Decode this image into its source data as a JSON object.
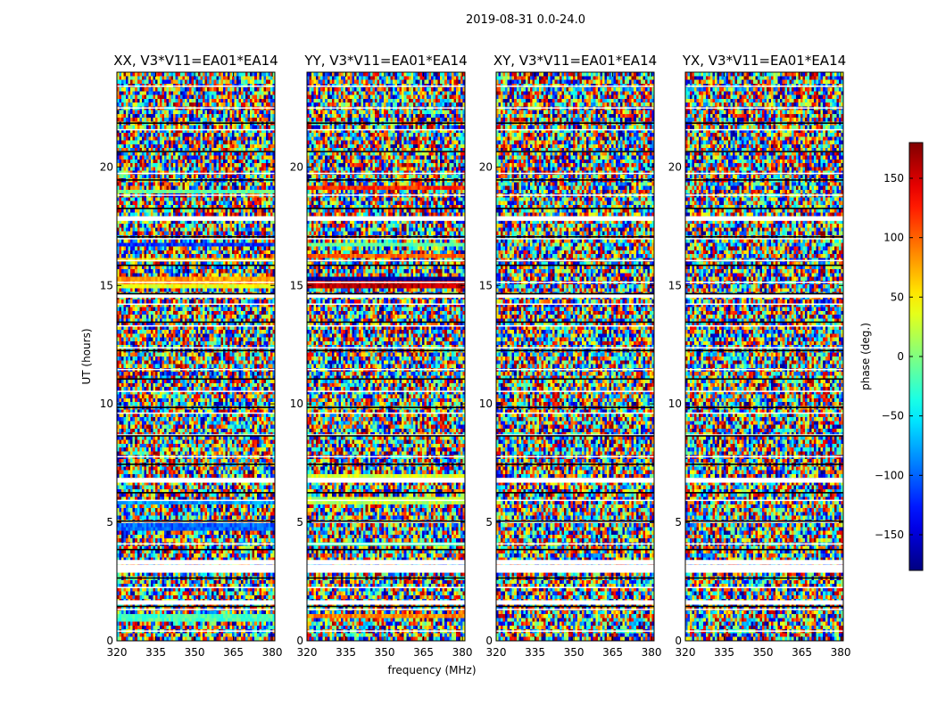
{
  "figure": {
    "suptitle": "2019-08-31 0.0-24.0",
    "xlabel": "frequency (MHz)",
    "ylabel": "UT (hours)",
    "colorbar_label": "phase (deg.)"
  },
  "chart_data": {
    "type": "heatmap",
    "title": "2019-08-31 0.0-24.0",
    "xlabel": "frequency (MHz)",
    "ylabel": "UT (hours)",
    "xlim": [
      320,
      381
    ],
    "ylim": [
      0,
      24
    ],
    "x_ticks": [
      320,
      335,
      350,
      365,
      380
    ],
    "y_ticks": [
      0,
      5,
      10,
      15,
      20
    ],
    "colorbar": {
      "label": "phase (deg.)",
      "range": [
        -180,
        180
      ],
      "ticks": [
        150,
        100,
        50,
        0,
        -50,
        -100,
        -150
      ],
      "tick_labels": [
        "150",
        "100",
        "50",
        "0",
        "−50",
        "−100",
        "−150"
      ],
      "colormap": "jet"
    },
    "panels": [
      {
        "title": "XX, V3*V11=EA01*EA14",
        "coherent_bands": [
          {
            "t": 0.95,
            "phase": -20
          },
          {
            "t": 16.7,
            "phase": -120
          },
          {
            "t": 16.1,
            "phase": 60
          },
          {
            "t": 15.2,
            "phase": 80
          },
          {
            "t": 14.95,
            "phase": 40
          },
          {
            "t": 19.0,
            "phase": -10
          },
          {
            "t": 5.8,
            "phase": -80
          },
          {
            "t": 4.8,
            "phase": -100
          }
        ]
      },
      {
        "title": "YY, V3*V11=EA01*EA14",
        "coherent_bands": [
          {
            "t": 1.0,
            "phase": 90
          },
          {
            "t": 15.05,
            "phase": 160
          },
          {
            "t": 15.3,
            "phase": -170
          },
          {
            "t": 16.7,
            "phase": -10
          },
          {
            "t": 19.1,
            "phase": 120
          },
          {
            "t": 16.2,
            "phase": 100
          },
          {
            "t": 5.9,
            "phase": 20
          },
          {
            "t": 4.1,
            "phase": -20
          },
          {
            "t": 6.9,
            "phase": 30
          }
        ]
      },
      {
        "title": "XY, V3*V11=EA01*EA14",
        "coherent_bands": []
      },
      {
        "title": "YX, V3*V11=EA01*EA14",
        "coherent_bands": []
      }
    ],
    "flagged_hours": [
      1.6,
      3.1,
      3.3,
      6.75,
      14.55,
      17.8,
      2.95
    ]
  }
}
